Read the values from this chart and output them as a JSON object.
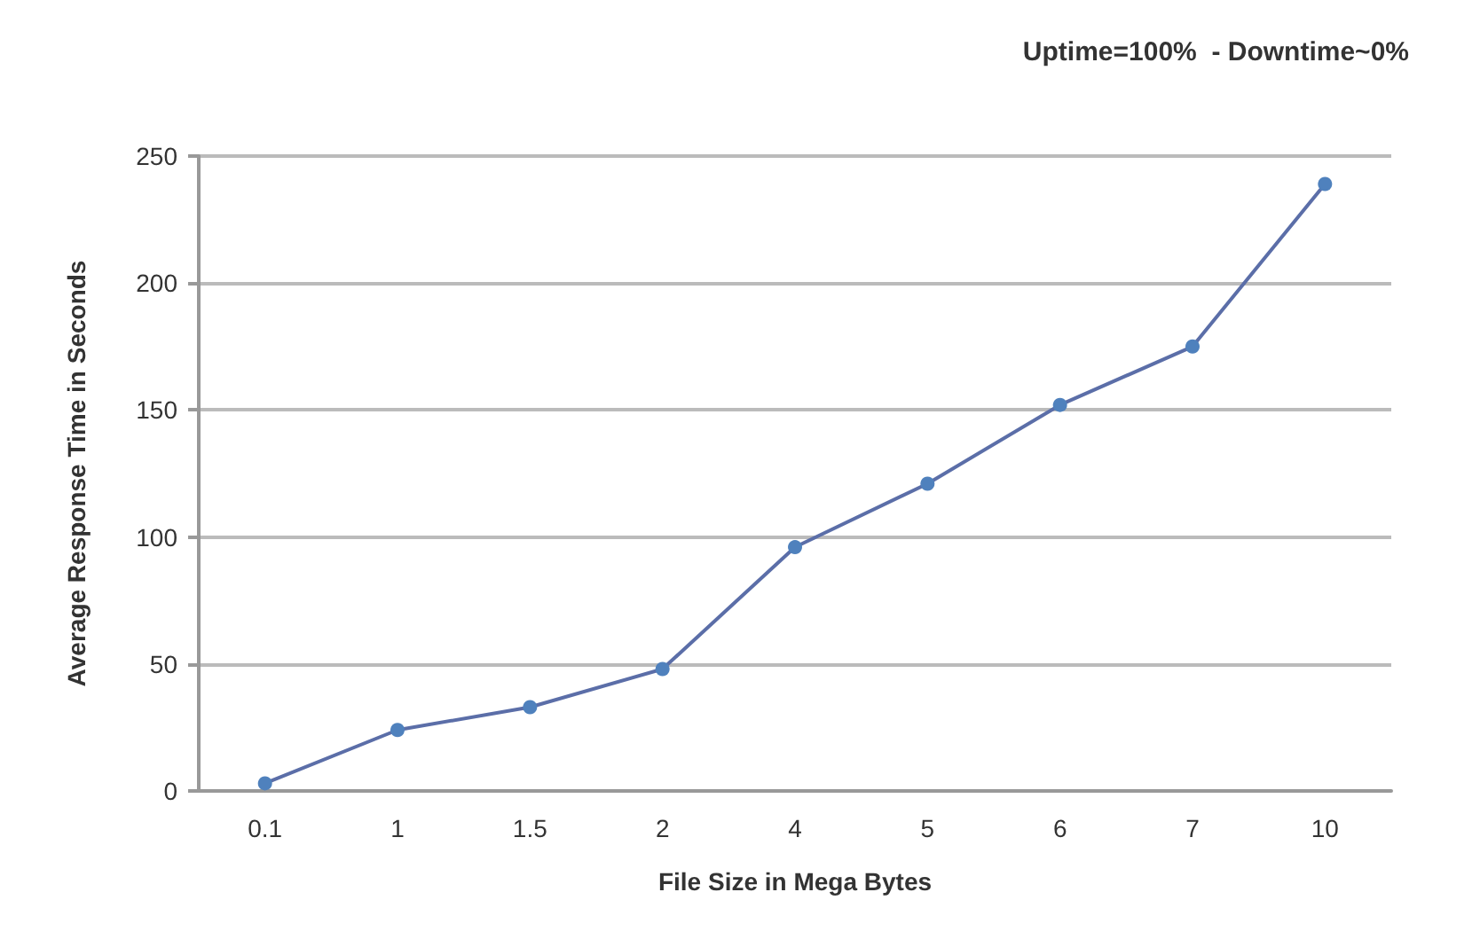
{
  "chart_data": {
    "type": "line",
    "xlabel": "File Size in Mega Bytes",
    "ylabel": "Average Response Time in Seconds",
    "annotations": [
      "Uptime=100%  - Downtime~0%"
    ],
    "categories": [
      "0.1",
      "1",
      "1.5",
      "2",
      "4",
      "5",
      "6",
      "7",
      "10"
    ],
    "series": [
      {
        "color": "#5b6ea8",
        "values": [
          3,
          24,
          33,
          48,
          96,
          121,
          152,
          175,
          239
        ]
      }
    ],
    "ylim": [
      0,
      250
    ],
    "yticks": [
      0,
      50,
      100,
      150,
      200,
      250
    ],
    "grid": "y",
    "marker": "circle",
    "line_style": "solid"
  }
}
